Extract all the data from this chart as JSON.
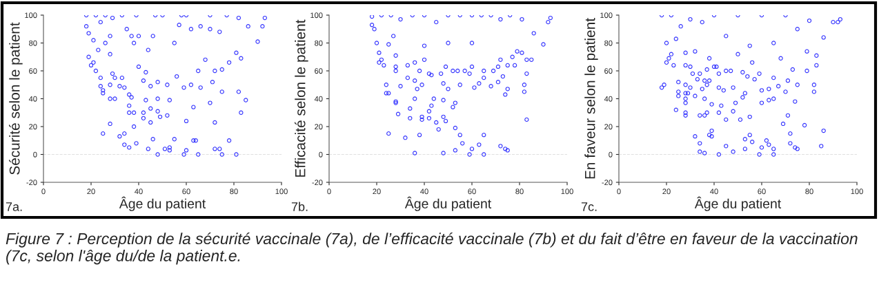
{
  "chart_data": [
    {
      "type": "scatter",
      "xlabel": "Âge du patient",
      "ylabel": "Sécurité selon le patient",
      "annotations": [
        "7a.",
        "Figure 7 : Perception de la sécurité vaccinale (7a), de l’efficacité vaccinale (7b) et du fait d’être en faveur de la vaccination (7c, selon l'âge du/de la patient.e."
      ],
      "xlim": [
        0,
        100
      ],
      "ylim": [
        -20,
        100
      ],
      "xticks": [
        0,
        20,
        40,
        60,
        80,
        100
      ],
      "yticks": [
        -20,
        0,
        20,
        40,
        60,
        80,
        100
      ],
      "grid": false,
      "marker": "circle",
      "ref_lines": [
        {
          "axis": "y",
          "value": 0,
          "color": "#e0e0e0",
          "line_style": "dashed"
        }
      ],
      "series": [
        {
          "color": "#3333ff",
          "x": [
            18,
            18,
            19,
            19,
            20,
            21,
            21,
            22,
            22,
            23,
            24,
            24,
            24,
            25,
            25,
            25,
            26,
            26,
            28,
            28,
            28,
            28,
            28,
            29,
            29,
            30,
            30,
            32,
            32,
            33,
            33,
            34,
            34,
            34,
            35,
            36,
            36,
            36,
            36,
            37,
            38,
            38,
            39,
            39,
            40,
            40,
            42,
            42,
            42,
            43,
            43,
            44,
            45,
            45,
            45,
            46,
            47,
            48,
            48,
            48,
            48,
            49,
            50,
            51,
            52,
            52,
            53,
            53,
            53,
            55,
            56,
            58,
            59,
            59,
            60,
            60,
            60,
            62,
            63,
            63,
            64,
            65,
            65,
            66,
            68,
            70,
            70,
            71,
            72,
            72,
            72,
            74,
            75,
            75,
            75,
            77,
            78,
            78,
            81,
            81,
            82,
            82,
            83,
            83,
            85,
            86,
            90,
            92,
            93,
            37,
            38,
            44,
            46,
            55,
            57,
            62,
            66,
            70,
            74
          ],
          "values": [
            100,
            92,
            87,
            70,
            64,
            82,
            66,
            100,
            60,
            75,
            95,
            55,
            49,
            46,
            44,
            15,
            100,
            80,
            85,
            72,
            50,
            40,
            22,
            98,
            58,
            40,
            55,
            13,
            49,
            100,
            55,
            15,
            7,
            48,
            90,
            43,
            35,
            30,
            5,
            41,
            30,
            20,
            8,
            100,
            85,
            63,
            53,
            30,
            26,
            39,
            59,
            4,
            33,
            23,
            49,
            11,
            100,
            40,
            31,
            0,
            52,
            27,
            100,
            4,
            28,
            50,
            5,
            3,
            39,
            11,
            56,
            100,
            0,
            48,
            24,
            3,
            100,
            50,
            34,
            10,
            10,
            60,
            0,
            48,
            68,
            37,
            100,
            52,
            23,
            4,
            60,
            4,
            0,
            45,
            61,
            100,
            10,
            66,
            0,
            73,
            45,
            98,
            30,
            69,
            39,
            92,
            81,
            92,
            98,
            85,
            80,
            75,
            85,
            80,
            93,
            90,
            92,
            90,
            88
          ]
        }
      ]
    },
    {
      "type": "scatter",
      "xlabel": "Âge du patient",
      "ylabel": "Efficacité selon le patient",
      "annotations": [
        "7b."
      ],
      "xlim": [
        0,
        100
      ],
      "ylim": [
        -20,
        100
      ],
      "xticks": [
        0,
        20,
        40,
        60,
        80,
        100
      ],
      "yticks": [
        -20,
        0,
        20,
        40,
        60,
        80,
        100
      ],
      "grid": false,
      "marker": "circle",
      "ref_lines": [
        {
          "axis": "y",
          "value": 0,
          "color": "#e0e0e0",
          "line_style": "dashed"
        }
      ],
      "series": [
        {
          "color": "#3333ff",
          "x": [
            18,
            18,
            19,
            20,
            21,
            21,
            22,
            23,
            24,
            24,
            25,
            25,
            25,
            26,
            27,
            28,
            28,
            28,
            28,
            28,
            29,
            30,
            32,
            33,
            33,
            34,
            34,
            36,
            36,
            36,
            36,
            37,
            38,
            38,
            39,
            39,
            39,
            40,
            42,
            42,
            42,
            43,
            43,
            44,
            45,
            46,
            47,
            48,
            48,
            48,
            48,
            49,
            49,
            50,
            52,
            52,
            53,
            53,
            53,
            54,
            55,
            55,
            56,
            57,
            59,
            59,
            60,
            60,
            61,
            63,
            63,
            65,
            65,
            65,
            65,
            68,
            69,
            71,
            71,
            72,
            72,
            73,
            74,
            74,
            75,
            75,
            75,
            77,
            78,
            79,
            81,
            82,
            82,
            83,
            83,
            83,
            85,
            86,
            90,
            92,
            93,
            22,
            30,
            35,
            40,
            45,
            50,
            55,
            60,
            64,
            68,
            72,
            76,
            81,
            40,
            50,
            60
          ],
          "values": [
            99,
            93,
            90,
            80,
            73,
            66,
            68,
            64,
            50,
            44,
            44,
            15,
            79,
            100,
            85,
            71,
            63,
            60,
            38,
            37,
            29,
            49,
            12,
            55,
            64,
            33,
            26,
            66,
            53,
            40,
            1,
            47,
            14,
            60,
            50,
            27,
            25,
            68,
            58,
            31,
            26,
            57,
            35,
            40,
            23,
            18,
            58,
            39,
            27,
            1,
            51,
            24,
            63,
            47,
            60,
            34,
            37,
            19,
            3,
            60,
            14,
            50,
            8,
            60,
            0,
            58,
            63,
            4,
            48,
            7,
            51,
            60,
            14,
            0,
            55,
            49,
            60,
            52,
            63,
            6,
            68,
            56,
            4,
            43,
            3,
            47,
            64,
            70,
            64,
            74,
            73,
            50,
            45,
            58,
            25,
            68,
            68,
            87,
            79,
            95,
            98,
            100,
            97,
            100,
            100,
            95,
            100,
            100,
            100,
            100,
            100,
            97,
            100,
            97,
            78,
            80,
            80
          ]
        }
      ]
    },
    {
      "type": "scatter",
      "xlabel": "Âge du patient",
      "ylabel": "En faveur selon le patient",
      "annotations": [
        "7c."
      ],
      "xlim": [
        0,
        100
      ],
      "ylim": [
        -20,
        100
      ],
      "xticks": [
        0,
        20,
        40,
        60,
        80,
        100
      ],
      "yticks": [
        -20,
        0,
        20,
        40,
        60,
        80,
        100
      ],
      "grid": false,
      "marker": "circle",
      "ref_lines": [
        {
          "axis": "y",
          "value": 0,
          "color": "#e0e0e0",
          "line_style": "dashed"
        }
      ],
      "series": [
        {
          "color": "#3333ff",
          "x": [
            18,
            18,
            19,
            20,
            20,
            21,
            22,
            22,
            23,
            24,
            24,
            25,
            25,
            25,
            26,
            28,
            28,
            28,
            28,
            28,
            28,
            28,
            28,
            29,
            30,
            30,
            30,
            31,
            32,
            32,
            32,
            33,
            34,
            34,
            34,
            34,
            35,
            36,
            36,
            36,
            36,
            37,
            37,
            37,
            38,
            38,
            38,
            39,
            39,
            39,
            40,
            41,
            42,
            42,
            42,
            42,
            43,
            44,
            45,
            45,
            45,
            47,
            48,
            48,
            48,
            49,
            50,
            51,
            52,
            52,
            53,
            53,
            53,
            54,
            55,
            55,
            56,
            56,
            57,
            59,
            59,
            60,
            60,
            60,
            62,
            63,
            63,
            63,
            65,
            65,
            65,
            65,
            67,
            68,
            69,
            70,
            71,
            71,
            72,
            72,
            73,
            74,
            74,
            75,
            75,
            79,
            79,
            82,
            82,
            83,
            83,
            85,
            86,
            86,
            90,
            92,
            93,
            78,
            40,
            50,
            60,
            70,
            35,
            45,
            55,
            65,
            75,
            80
          ],
          "values": [
            100,
            48,
            50,
            80,
            66,
            69,
            72,
            100,
            64,
            83,
            32,
            52,
            45,
            42,
            92,
            73,
            64,
            50,
            44,
            40,
            37,
            30,
            28,
            44,
            63,
            48,
            97,
            58,
            42,
            13,
            74,
            54,
            58,
            28,
            8,
            2,
            47,
            53,
            40,
            28,
            1,
            61,
            30,
            50,
            69,
            14,
            53,
            36,
            13,
            17,
            63,
            63,
            58,
            30,
            0,
            48,
            35,
            46,
            25,
            6,
            60,
            60,
            31,
            2,
            48,
            37,
            72,
            25,
            41,
            59,
            11,
            4,
            44,
            56,
            14,
            27,
            9,
            66,
            54,
            0,
            58,
            46,
            5,
            37,
            10,
            7,
            39,
            47,
            4,
            0,
            55,
            40,
            49,
            69,
            22,
            45,
            28,
            53,
            8,
            15,
            61,
            38,
            5,
            4,
            50,
            74,
            60,
            50,
            45,
            71,
            64,
            6,
            17,
            84,
            95,
            95,
            97,
            21,
            100,
            100,
            100,
            100,
            95,
            85,
            78,
            80,
            90,
            96
          ]
        }
      ]
    }
  ]
}
